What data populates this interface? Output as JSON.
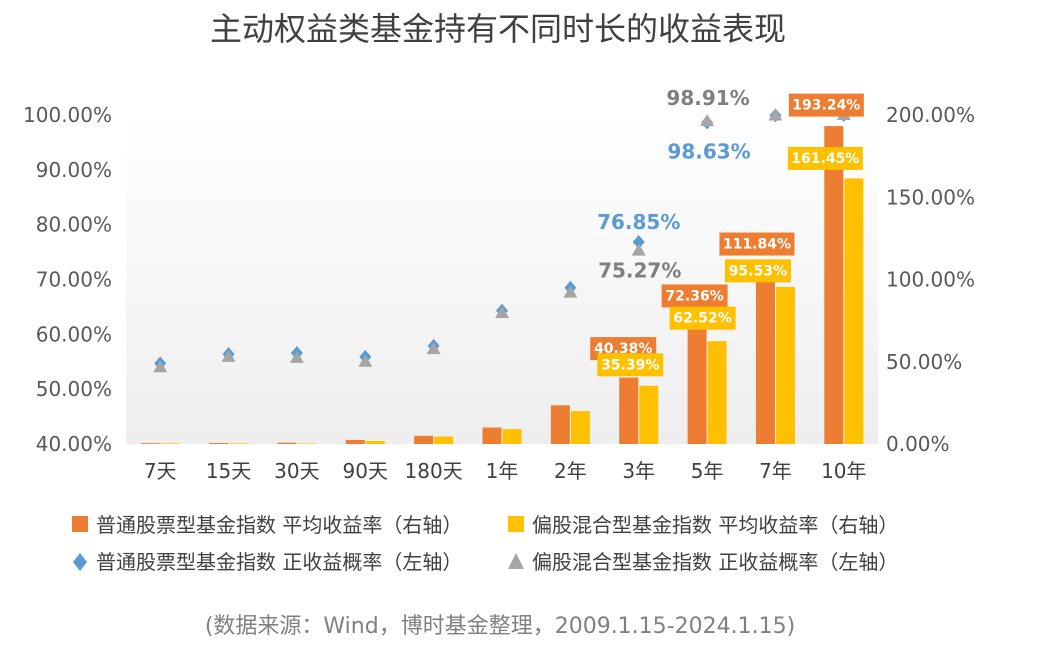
{
  "chart_data": {
    "type": "bar",
    "title": "主动权益类基金持有不同时长的收益表现",
    "categories": [
      "7天",
      "15天",
      "30天",
      "90天",
      "180天",
      "1年",
      "2年",
      "3年",
      "5年",
      "7年",
      "10年"
    ],
    "left_axis": {
      "ticks": [
        "100.00%",
        "90.00%",
        "80.00%",
        "70.00%",
        "60.00%",
        "50.00%",
        "40.00%"
      ],
      "ylim": [
        40,
        100
      ]
    },
    "right_axis": {
      "ticks": [
        "200.00%",
        "150.00%",
        "100.00%",
        "50.00%",
        "0.00%"
      ],
      "ylim": [
        0,
        200
      ]
    },
    "series": [
      {
        "name": "普通股票型基金指数 平均收益率（右轴）",
        "kind": "bar",
        "axis": "right",
        "color": "#ED7D31",
        "values": [
          0.5,
          0.6,
          0.8,
          2.5,
          5.0,
          10.0,
          23.5,
          40.38,
          72.36,
          111.84,
          193.24
        ],
        "labels": [
          "",
          "",
          "",
          "",
          "",
          "",
          "",
          "40.38%",
          "72.36%",
          "111.84%",
          "193.24%"
        ]
      },
      {
        "name": "偏股混合型基金指数 平均收益率（右轴）",
        "kind": "bar",
        "axis": "right",
        "color": "#FFC000",
        "values": [
          0.4,
          0.4,
          0.3,
          1.8,
          4.5,
          9.0,
          20.0,
          35.39,
          62.52,
          95.53,
          161.45
        ],
        "labels": [
          "",
          "",
          "",
          "",
          "",
          "",
          "",
          "35.39%",
          "62.52%",
          "95.53%",
          "161.45%"
        ]
      },
      {
        "name": "普通股票型基金指数 正收益概率（左轴）",
        "kind": "scatter",
        "marker": "diamond",
        "axis": "left",
        "color": "#5B9BD5",
        "values": [
          54.7,
          56.4,
          56.6,
          55.9,
          57.9,
          64.3,
          68.5,
          76.85,
          98.63,
          99.9,
          100.0
        ],
        "labels": [
          "",
          "",
          "",
          "",
          "",
          "",
          "",
          "76.85%",
          "98.63%",
          "",
          ""
        ]
      },
      {
        "name": "偏股混合型基金指数 正收益概率（左轴）",
        "kind": "scatter",
        "marker": "triangle",
        "axis": "left",
        "color": "#A5A5A5",
        "values": [
          54.0,
          55.9,
          55.7,
          55.0,
          57.3,
          63.9,
          67.6,
          75.27,
          98.91,
          99.9,
          100.0
        ],
        "labels": [
          "",
          "",
          "",
          "",
          "",
          "",
          "",
          "75.27%",
          "98.91%",
          "",
          ""
        ]
      }
    ],
    "grid": false,
    "legend": "bottom"
  },
  "source_note": "(数据来源：Wind，博时基金整理，2009.1.15-2024.1.15)"
}
